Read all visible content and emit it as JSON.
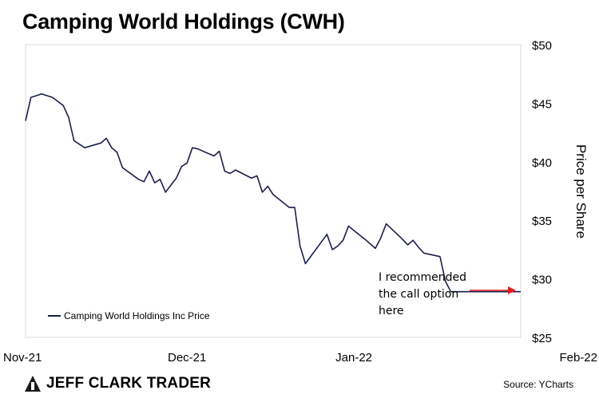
{
  "chart_data": {
    "type": "line",
    "title": "Camping World Holdings (CWH)",
    "xlabel": "",
    "ylabel": "Price per Share",
    "ylim": [
      25,
      50
    ],
    "yticks": [
      "$50",
      "$45",
      "$40",
      "$35",
      "$30",
      "$25"
    ],
    "ytick_values": [
      50,
      45,
      40,
      35,
      30,
      25
    ],
    "xticks": [
      "Nov-21",
      "Dec-21",
      "Jan-22",
      "Feb-22"
    ],
    "xtick_values": [
      "2021-11-01",
      "2021-12-01",
      "2022-01-01",
      "2022-02-01"
    ],
    "axis_side": "right",
    "grid": false,
    "legend_position": "bottom-left",
    "series": [
      {
        "name": "Camping World Holdings Inc Price",
        "color": "#1a1f4b",
        "x": [
          "2021-11-01",
          "2021-11-02",
          "2021-11-04",
          "2021-11-06",
          "2021-11-08",
          "2021-11-09",
          "2021-11-10",
          "2021-11-12",
          "2021-11-15",
          "2021-11-16",
          "2021-11-17",
          "2021-11-18",
          "2021-11-19",
          "2021-11-22",
          "2021-11-23",
          "2021-11-24",
          "2021-11-25",
          "2021-11-26",
          "2021-11-27",
          "2021-11-29",
          "2021-11-30",
          "2021-12-01",
          "2021-12-02",
          "2021-12-03",
          "2021-12-06",
          "2021-12-07",
          "2021-12-08",
          "2021-12-09",
          "2021-12-10",
          "2021-12-13",
          "2021-12-14",
          "2021-12-15",
          "2021-12-16",
          "2021-12-17",
          "2021-12-20",
          "2021-12-21",
          "2021-12-22",
          "2021-12-23",
          "2021-12-27",
          "2021-12-28",
          "2021-12-29",
          "2021-12-30",
          "2021-12-31",
          "2022-01-03",
          "2022-01-05",
          "2022-01-06",
          "2022-01-07",
          "2022-01-10",
          "2022-01-11",
          "2022-01-12",
          "2022-01-13",
          "2022-01-14",
          "2022-01-17",
          "2022-01-18",
          "2022-01-19",
          "2022-01-20",
          "2022-01-21",
          "2022-01-24",
          "2022-01-25",
          "2022-01-26",
          "2022-01-27",
          "2022-01-28",
          "2022-01-29",
          "2022-01-31",
          "2022-02-01"
        ],
        "values": [
          43.5,
          45.5,
          45.8,
          45.5,
          44.8,
          43.8,
          41.8,
          41.2,
          41.6,
          42.0,
          41.2,
          40.8,
          39.5,
          38.5,
          38.3,
          39.2,
          38.2,
          38.5,
          37.4,
          38.6,
          39.6,
          39.9,
          41.2,
          41.1,
          40.5,
          40.9,
          39.2,
          39.0,
          39.3,
          38.6,
          38.8,
          37.4,
          37.9,
          37.2,
          36.1,
          36.1,
          32.8,
          31.3,
          33.8,
          32.5,
          32.8,
          33.3,
          34.5,
          33.4,
          32.6,
          33.5,
          34.7,
          33.4,
          32.9,
          33.3,
          32.7,
          32.2,
          31.9,
          29.8,
          28.9,
          28.9,
          28.9,
          28.9,
          28.9,
          28.9,
          28.9,
          28.9,
          28.9,
          28.9,
          28.9
        ]
      }
    ],
    "annotation": {
      "lines": [
        "I recommended",
        "the call option",
        "here"
      ],
      "arrow_color": "#e02020"
    }
  },
  "branding": {
    "logo_text": "JEFF CLARK TRADER",
    "source_text": "Source: YCharts"
  }
}
